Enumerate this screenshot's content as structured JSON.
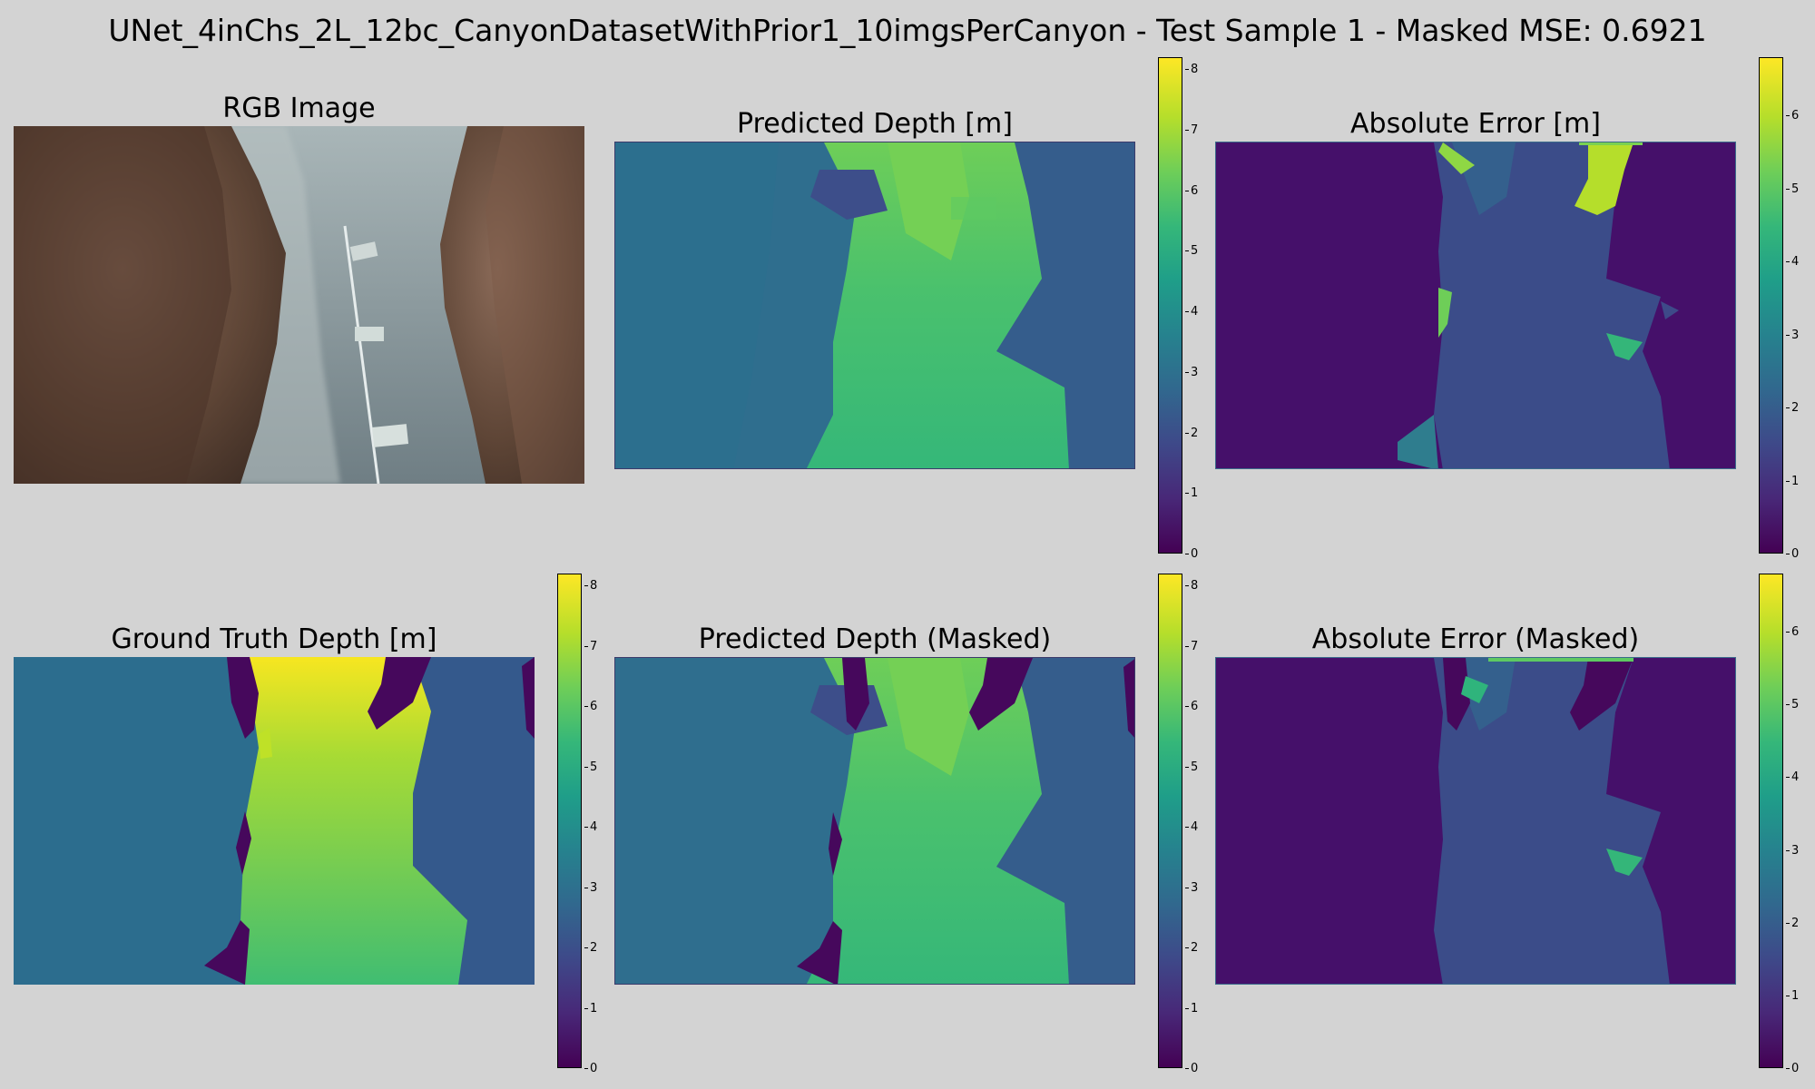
{
  "suptitle": "UNet_4inChs_2L_12bc_CanyonDatasetWithPrior1_10imgsPerCanyon - Test Sample 1 - Masked MSE: 0.6921",
  "panels": [
    {
      "title": "RGB Image"
    },
    {
      "title": "Predicted Depth [m]"
    },
    {
      "title": "Absolute Error [m]"
    },
    {
      "title": "Ground Truth Depth [m]"
    },
    {
      "title": "Predicted Depth (Masked)"
    },
    {
      "title": "Absolute Error (Masked)"
    }
  ],
  "chart_data": [
    {
      "type": "heatmap",
      "title": "RGB Image"
    },
    {
      "type": "heatmap",
      "title": "Predicted Depth [m]",
      "colormap": "viridis",
      "clim": [
        0,
        8.2
      ],
      "colorbar_ticks": [
        0,
        1,
        2,
        3,
        4,
        5,
        6,
        7,
        8
      ]
    },
    {
      "type": "heatmap",
      "title": "Absolute Error [m]",
      "colormap": "viridis",
      "clim": [
        0,
        6.8
      ],
      "colorbar_ticks": [
        0,
        1,
        2,
        3,
        4,
        5,
        6
      ]
    },
    {
      "type": "heatmap",
      "title": "Ground Truth Depth [m]",
      "colormap": "viridis",
      "clim": [
        0,
        8.2
      ],
      "colorbar_ticks": [
        0,
        1,
        2,
        3,
        4,
        5,
        6,
        7,
        8
      ]
    },
    {
      "type": "heatmap",
      "title": "Predicted Depth (Masked)",
      "colormap": "viridis",
      "clim": [
        0,
        8.2
      ],
      "colorbar_ticks": [
        0,
        1,
        2,
        3,
        4,
        5,
        6,
        7,
        8
      ]
    },
    {
      "type": "heatmap",
      "title": "Absolute Error (Masked)",
      "colormap": "viridis",
      "clim": [
        0,
        6.8
      ],
      "colorbar_ticks": [
        0,
        1,
        2,
        3,
        4,
        5,
        6
      ]
    }
  ]
}
